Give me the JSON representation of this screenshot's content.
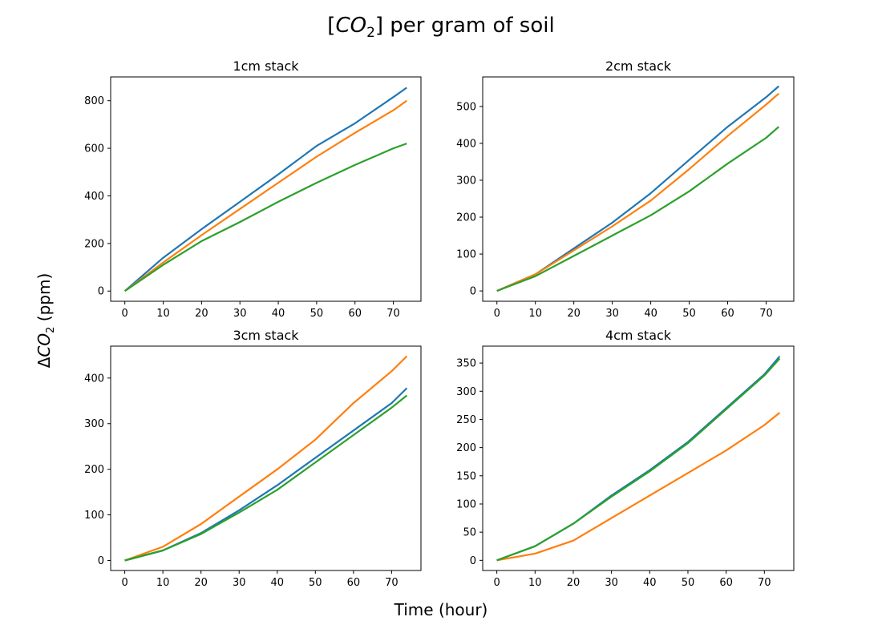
{
  "figure": {
    "title_prefix": "[",
    "title_chem": "CO",
    "title_sub": "2",
    "title_suffix": "] per gram of soil",
    "xlabel": "Time (hour)",
    "ylabel_delta": "Δ",
    "ylabel_chem": "CO",
    "ylabel_sub": "2",
    "ylabel_unit": " (ppm)"
  },
  "colors": {
    "blue": "#1f77b4",
    "orange": "#ff7f0e",
    "green": "#2ca02c"
  },
  "chart_data": [
    {
      "type": "line",
      "title": "1cm stack",
      "xlim": [
        -3.7,
        77.2
      ],
      "ylim": [
        -43,
        900
      ],
      "xticks": [
        0,
        10,
        20,
        30,
        40,
        50,
        60,
        70
      ],
      "yticks": [
        0,
        200,
        400,
        600,
        800
      ],
      "grid": false,
      "series": [
        {
          "color": "#1f77b4",
          "x": [
            0,
            10,
            20,
            30,
            40,
            50,
            60,
            70,
            73.5
          ],
          "y": [
            0,
            140,
            260,
            375,
            490,
            610,
            705,
            815,
            855
          ]
        },
        {
          "color": "#ff7f0e",
          "x": [
            0,
            10,
            20,
            30,
            40,
            50,
            60,
            70,
            73.5
          ],
          "y": [
            0,
            120,
            235,
            345,
            455,
            565,
            665,
            760,
            800
          ]
        },
        {
          "color": "#2ca02c",
          "x": [
            0,
            10,
            20,
            30,
            40,
            50,
            60,
            70,
            73.5
          ],
          "y": [
            0,
            110,
            210,
            290,
            375,
            455,
            530,
            600,
            620
          ]
        }
      ]
    },
    {
      "type": "line",
      "title": "2cm stack",
      "xlim": [
        -3.7,
        77.2
      ],
      "ylim": [
        -28,
        580
      ],
      "xticks": [
        0,
        10,
        20,
        30,
        40,
        50,
        60,
        70
      ],
      "yticks": [
        0,
        100,
        200,
        300,
        400,
        500
      ],
      "grid": false,
      "series": [
        {
          "color": "#1f77b4",
          "x": [
            0,
            10,
            20,
            30,
            40,
            50,
            60,
            70,
            73.3
          ],
          "y": [
            0,
            45,
            115,
            185,
            265,
            355,
            445,
            525,
            555
          ]
        },
        {
          "color": "#ff7f0e",
          "x": [
            0,
            10,
            20,
            30,
            40,
            50,
            60,
            70,
            73.3
          ],
          "y": [
            0,
            45,
            110,
            175,
            245,
            330,
            420,
            505,
            535
          ]
        },
        {
          "color": "#2ca02c",
          "x": [
            0,
            10,
            20,
            30,
            40,
            50,
            60,
            70,
            73.3
          ],
          "y": [
            0,
            40,
            95,
            150,
            205,
            270,
            345,
            415,
            445
          ]
        }
      ]
    },
    {
      "type": "line",
      "title": "3cm stack",
      "xlim": [
        -3.7,
        77.7
      ],
      "ylim": [
        -22,
        470
      ],
      "xticks": [
        0,
        10,
        20,
        30,
        40,
        50,
        60,
        70
      ],
      "yticks": [
        0,
        100,
        200,
        300,
        400
      ],
      "grid": false,
      "series": [
        {
          "color": "#1f77b4",
          "x": [
            0,
            10,
            20,
            30,
            40,
            50,
            60,
            70,
            74
          ],
          "y": [
            0,
            22,
            60,
            110,
            165,
            225,
            285,
            345,
            378
          ]
        },
        {
          "color": "#ff7f0e",
          "x": [
            0,
            10,
            20,
            30,
            40,
            50,
            60,
            70,
            74
          ],
          "y": [
            0,
            30,
            80,
            140,
            200,
            265,
            345,
            415,
            448
          ]
        },
        {
          "color": "#2ca02c",
          "x": [
            0,
            10,
            20,
            30,
            40,
            50,
            60,
            70,
            74
          ],
          "y": [
            0,
            22,
            58,
            105,
            155,
            215,
            275,
            335,
            362
          ]
        }
      ]
    },
    {
      "type": "line",
      "title": "4cm stack",
      "xlim": [
        -3.7,
        77.7
      ],
      "ylim": [
        -18,
        380
      ],
      "xticks": [
        0,
        10,
        20,
        30,
        40,
        50,
        60,
        70
      ],
      "yticks": [
        0,
        50,
        100,
        150,
        200,
        250,
        300,
        350
      ],
      "grid": false,
      "series": [
        {
          "color": "#1f77b4",
          "x": [
            0,
            10,
            20,
            30,
            40,
            50,
            60,
            70,
            74
          ],
          "y": [
            0,
            25,
            65,
            115,
            160,
            210,
            270,
            330,
            362
          ]
        },
        {
          "color": "#ff7f0e",
          "x": [
            0,
            10,
            20,
            30,
            40,
            50,
            60,
            70,
            74
          ],
          "y": [
            0,
            12,
            35,
            75,
            115,
            155,
            195,
            240,
            262
          ]
        },
        {
          "color": "#2ca02c",
          "x": [
            0,
            10,
            20,
            30,
            40,
            50,
            60,
            70,
            74
          ],
          "y": [
            0,
            25,
            65,
            113,
            158,
            208,
            268,
            328,
            358
          ]
        }
      ]
    }
  ]
}
